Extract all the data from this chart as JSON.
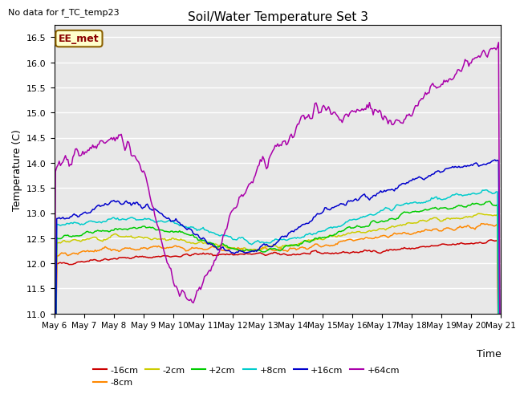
{
  "title": "Soil/Water Temperature Set 3",
  "xlabel": "Time",
  "ylabel": "Temperature (C)",
  "ylim": [
    11.0,
    16.75
  ],
  "yticks": [
    11.0,
    11.5,
    12.0,
    12.5,
    13.0,
    13.5,
    14.0,
    14.5,
    15.0,
    15.5,
    16.0,
    16.5
  ],
  "n_points": 360,
  "note": "No data for f_TC_temp23",
  "label_box": "EE_met",
  "series": [
    {
      "label": "-16cm",
      "color": "#cc0000"
    },
    {
      "label": "-8cm",
      "color": "#ff8800"
    },
    {
      "label": "-2cm",
      "color": "#cccc00"
    },
    {
      "label": "+2cm",
      "color": "#00cc00"
    },
    {
      "label": "+8cm",
      "color": "#00cccc"
    },
    {
      "label": "+16cm",
      "color": "#0000cc"
    },
    {
      "label": "+64cm",
      "color": "#aa00aa"
    }
  ],
  "xtick_labels": [
    "May 6",
    "May 7",
    "May 8",
    "May 9",
    "May 10",
    "May 11",
    "May 12",
    "May 13",
    "May 14",
    "May 15",
    "May 16",
    "May 17",
    "May 18",
    "May 19",
    "May 20",
    "May 21"
  ],
  "xtick_positions": [
    0,
    24,
    48,
    72,
    96,
    120,
    144,
    168,
    192,
    216,
    240,
    264,
    288,
    312,
    336,
    360
  ]
}
